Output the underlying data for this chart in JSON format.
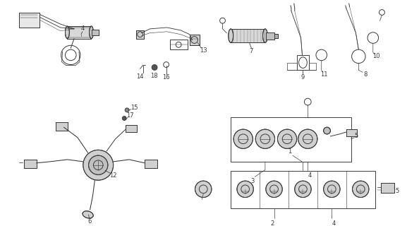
{
  "background_color": "#ffffff",
  "line_color": "#3a3a3a",
  "fig_width": 5.94,
  "fig_height": 3.2,
  "dpi": 100,
  "label_fontsize": 6.0,
  "lw": 0.7
}
